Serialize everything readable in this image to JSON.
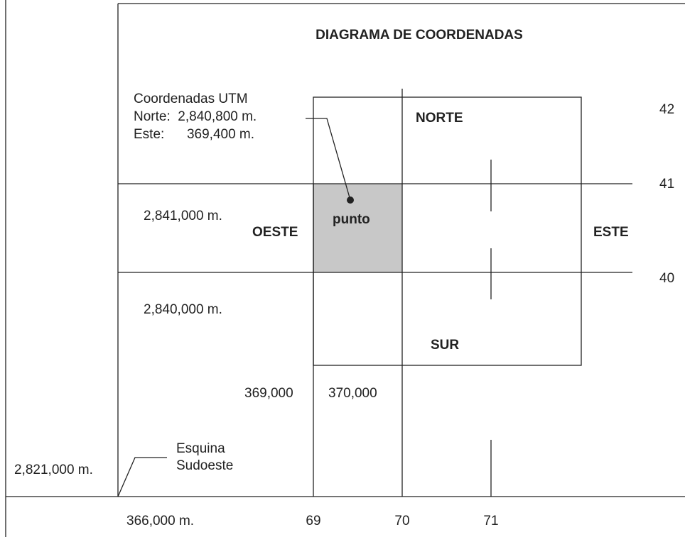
{
  "title": "DIAGRAMA DE COORDENADAS",
  "utm_box": {
    "heading": "Coordenadas UTM",
    "norte": "Norte:  2,840,800 m.",
    "este": "Este:      369,400 m."
  },
  "directions": {
    "north": "NORTE",
    "south": "SUR",
    "west": "OESTE",
    "east": "ESTE"
  },
  "point_label": "punto",
  "northings": {
    "upper": "2,841,000 m.",
    "lower": "2,840,000 m.",
    "corner": "2,821,000 m."
  },
  "eastings": {
    "left": "369,000",
    "right": "370,000",
    "corner": "366,000 m."
  },
  "corner_label": {
    "line1": "Esquina",
    "line2": "Sudoeste"
  },
  "right_ticks": [
    "42",
    "41",
    "40"
  ],
  "bottom_ticks": [
    "69",
    "70",
    "71"
  ]
}
